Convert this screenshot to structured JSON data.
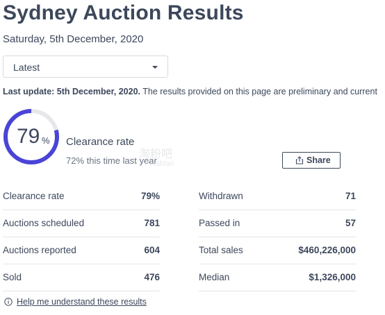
{
  "header": {
    "title": "Sydney Auction Results",
    "date": "Saturday, 5th December, 2020"
  },
  "filter": {
    "selected": "Latest"
  },
  "update": {
    "bold": "Last update: 5th December, 2020.",
    "text": " The results provided on this page are preliminary and current"
  },
  "clearance": {
    "value": "79",
    "unit": "%",
    "fraction": 0.79,
    "label": "Clearance rate",
    "last_year": "72% this time last year",
    "ring_color": "#4a44d6",
    "track_color": "#e6e7ea"
  },
  "watermark": {
    "line1": "淘粉吧",
    "line2": "Pinabian"
  },
  "share": {
    "label": "Share",
    "icon": "share-icon"
  },
  "stats": {
    "left": [
      {
        "label": "Clearance rate",
        "value": "79%"
      },
      {
        "label": "Auctions scheduled",
        "value": "781"
      },
      {
        "label": "Auctions reported",
        "value": "604"
      },
      {
        "label": "Sold",
        "value": "476"
      }
    ],
    "right": [
      {
        "label": "Withdrawn",
        "value": "71"
      },
      {
        "label": "Passed in",
        "value": "57"
      },
      {
        "label": "Total sales",
        "value": "$460,226,000"
      },
      {
        "label": "Median",
        "value": "$1,326,000"
      }
    ]
  },
  "help": {
    "icon": "info-icon",
    "label": "Help me understand these results"
  }
}
